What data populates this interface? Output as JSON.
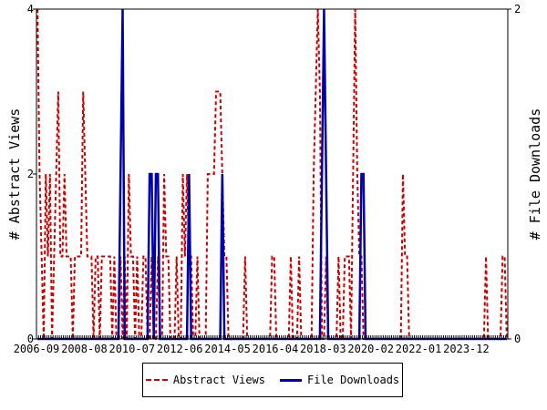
{
  "chart_data": {
    "type": "line",
    "x_axis": {
      "tick_labels": [
        "2006-09",
        "2008-08",
        "2010-07",
        "2012-06",
        "2014-05",
        "2016-04",
        "2018-03",
        "2020-02",
        "2022-01",
        "2023-12"
      ],
      "start": "2006-09",
      "end": "2025-07",
      "unit": "month"
    },
    "left_axis": {
      "label": "# Abstract Views",
      "ticks": [
        "0",
        "2",
        "4"
      ],
      "ylim": [
        0,
        4
      ]
    },
    "right_axis": {
      "label": "# File Downloads",
      "ticks": [
        "0",
        "2"
      ],
      "ylim": [
        0,
        2
      ]
    },
    "series": [
      {
        "name": "Abstract Views",
        "axis": "left",
        "color": "#cc0000",
        "style": "dashed",
        "points": [
          [
            "2006-09",
            4
          ],
          [
            "2006-10",
            2
          ],
          [
            "2006-11",
            1
          ],
          [
            "2007-01",
            2
          ],
          [
            "2007-02",
            1
          ],
          [
            "2007-03",
            2
          ],
          [
            "2007-05",
            1
          ],
          [
            "2007-06",
            2
          ],
          [
            "2007-07",
            3
          ],
          [
            "2007-08",
            1
          ],
          [
            "2007-09",
            1
          ],
          [
            "2007-10",
            2
          ],
          [
            "2007-11",
            1
          ],
          [
            "2007-12",
            1
          ],
          [
            "2008-01",
            1
          ],
          [
            "2008-03",
            1
          ],
          [
            "2008-04",
            1
          ],
          [
            "2008-05",
            1
          ],
          [
            "2008-06",
            1
          ],
          [
            "2008-07",
            3
          ],
          [
            "2008-08",
            2
          ],
          [
            "2008-09",
            1
          ],
          [
            "2008-10",
            1
          ],
          [
            "2008-11",
            1
          ],
          [
            "2009-01",
            1
          ],
          [
            "2009-02",
            1
          ],
          [
            "2009-04",
            1
          ],
          [
            "2009-05",
            1
          ],
          [
            "2009-06",
            1
          ],
          [
            "2009-07",
            1
          ],
          [
            "2009-08",
            1
          ],
          [
            "2009-10",
            1
          ],
          [
            "2010-01",
            1
          ],
          [
            "2010-03",
            1
          ],
          [
            "2010-05",
            2
          ],
          [
            "2010-06",
            1
          ],
          [
            "2010-07",
            1
          ],
          [
            "2010-09",
            1
          ],
          [
            "2010-12",
            1
          ],
          [
            "2011-01",
            1
          ],
          [
            "2011-04",
            1
          ],
          [
            "2011-07",
            1
          ],
          [
            "2011-10",
            2
          ],
          [
            "2011-11",
            1
          ],
          [
            "2011-12",
            1
          ],
          [
            "2012-04",
            1
          ],
          [
            "2012-07",
            2
          ],
          [
            "2012-08",
            1
          ],
          [
            "2012-09",
            2
          ],
          [
            "2012-10",
            1
          ],
          [
            "2012-11",
            1
          ],
          [
            "2013-02",
            1
          ],
          [
            "2013-07",
            2
          ],
          [
            "2013-08",
            2
          ],
          [
            "2013-09",
            2
          ],
          [
            "2013-10",
            2
          ],
          [
            "2013-11",
            3
          ],
          [
            "2013-12",
            3
          ],
          [
            "2014-01",
            3
          ],
          [
            "2014-02",
            2
          ],
          [
            "2014-03",
            1
          ],
          [
            "2014-04",
            1
          ],
          [
            "2015-01",
            1
          ],
          [
            "2016-02",
            1
          ],
          [
            "2016-03",
            1
          ],
          [
            "2016-11",
            1
          ],
          [
            "2017-03",
            1
          ],
          [
            "2017-10",
            2
          ],
          [
            "2017-11",
            3
          ],
          [
            "2017-12",
            4
          ],
          [
            "2018-01",
            3
          ],
          [
            "2018-04",
            1
          ],
          [
            "2018-10",
            1
          ],
          [
            "2019-01",
            1
          ],
          [
            "2019-02",
            1
          ],
          [
            "2019-03",
            1
          ],
          [
            "2019-05",
            2
          ],
          [
            "2019-06",
            4
          ],
          [
            "2019-07",
            2
          ],
          [
            "2019-08",
            1
          ],
          [
            "2019-09",
            1
          ],
          [
            "2021-05",
            2
          ],
          [
            "2021-06",
            1
          ],
          [
            "2021-07",
            1
          ],
          [
            "2024-09",
            1
          ],
          [
            "2025-05",
            1
          ],
          [
            "2025-06",
            1
          ]
        ]
      },
      {
        "name": "File Downloads",
        "axis": "right",
        "color": "#0000aa",
        "style": "solid",
        "points": [
          [
            "2010-01",
            1
          ],
          [
            "2010-02",
            2
          ],
          [
            "2011-03",
            1
          ],
          [
            "2011-04",
            1
          ],
          [
            "2011-06",
            1
          ],
          [
            "2011-07",
            1
          ],
          [
            "2012-10",
            1
          ],
          [
            "2014-02",
            1
          ],
          [
            "2018-02",
            1
          ],
          [
            "2018-03",
            2
          ],
          [
            "2018-04",
            1
          ],
          [
            "2019-09",
            1
          ],
          [
            "2019-10",
            1
          ]
        ]
      }
    ],
    "legend": {
      "position": "bottom",
      "items": [
        "Abstract Views",
        "File Downloads"
      ]
    },
    "grid": false
  }
}
